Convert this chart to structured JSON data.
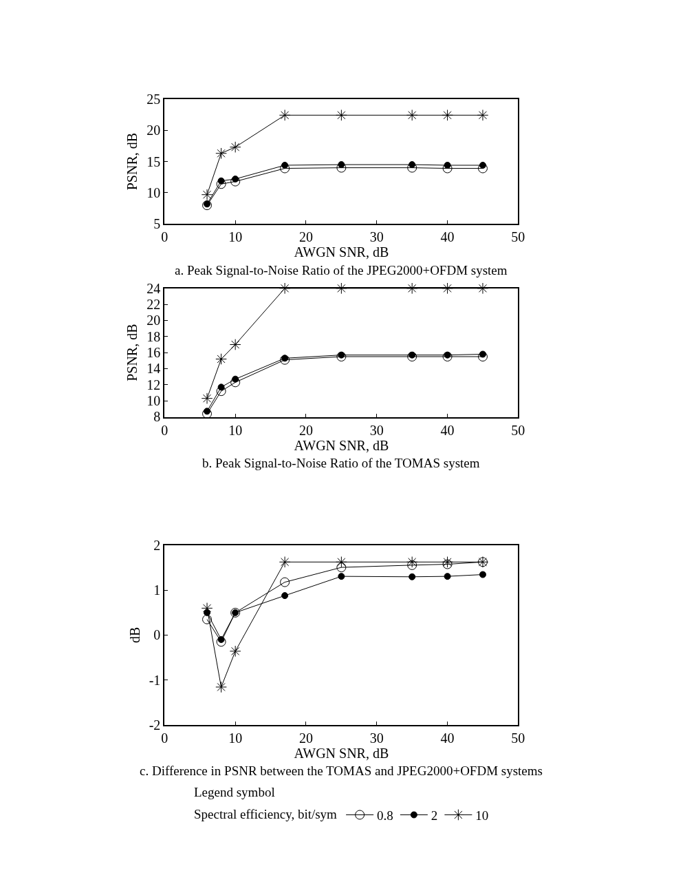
{
  "chart_data": [
    {
      "type": "line",
      "title": "a. Peak Signal-to-Noise Ratio of the JPEG2000+OFDM system",
      "xlabel": "AWGN SNR, dB",
      "ylabel": "PSNR, dB",
      "x": [
        6,
        8,
        10,
        17,
        25,
        35,
        40,
        45
      ],
      "xlim": [
        0,
        50
      ],
      "xticks": [
        0,
        10,
        20,
        30,
        40,
        50
      ],
      "ylim": [
        5,
        25
      ],
      "yticks": [
        5,
        10,
        15,
        20,
        25
      ],
      "series": [
        {
          "color": "#000000",
          "marker": "circle-open",
          "values": [
            8.0,
            11.4,
            11.8,
            13.9,
            14.0,
            14.0,
            13.9,
            13.9
          ]
        },
        {
          "color": "#000000",
          "marker": "circle",
          "values": [
            8.2,
            11.9,
            12.2,
            14.4,
            14.5,
            14.5,
            14.4,
            14.4
          ]
        },
        {
          "color": "#000000",
          "marker": "cross",
          "values": [
            9.7,
            16.3,
            17.3,
            22.4,
            22.4,
            22.4,
            22.4,
            22.4
          ]
        }
      ]
    },
    {
      "type": "line",
      "title": "b. Peak Signal-to-Noise Ratio of the TOMAS system",
      "xlabel": "AWGN SNR, dB",
      "ylabel": "PSNR, dB",
      "x": [
        6,
        8,
        10,
        17,
        25,
        35,
        40,
        45
      ],
      "xlim": [
        0,
        50
      ],
      "xticks": [
        0,
        10,
        20,
        30,
        40,
        50
      ],
      "ylim": [
        8,
        24
      ],
      "yticks": [
        8,
        10,
        12,
        14,
        16,
        18,
        20,
        22,
        24
      ],
      "series": [
        {
          "color": "#000000",
          "marker": "circle-open",
          "values": [
            8.4,
            11.2,
            12.3,
            15.1,
            15.5,
            15.5,
            15.5,
            15.5
          ]
        },
        {
          "color": "#000000",
          "marker": "circle",
          "values": [
            8.7,
            11.7,
            12.7,
            15.3,
            15.7,
            15.7,
            15.7,
            15.8
          ]
        },
        {
          "color": "#000000",
          "marker": "cross",
          "values": [
            10.3,
            15.2,
            17.0,
            24,
            24,
            24,
            24,
            24
          ]
        }
      ]
    },
    {
      "type": "line",
      "title": "c. Difference in PSNR between the TOMAS and JPEG2000+OFDM systems",
      "xlabel": "AWGN SNR, dB",
      "ylabel": "dB",
      "x": [
        6,
        8,
        10,
        17,
        25,
        35,
        40,
        45
      ],
      "xlim": [
        0,
        50
      ],
      "xticks": [
        0,
        10,
        20,
        30,
        40,
        50
      ],
      "ylim": [
        -2,
        2
      ],
      "yticks": [
        -2,
        -1,
        0,
        1,
        2
      ],
      "legend": "bottom",
      "legend_title": "Spectral efficiency, bit/sym",
      "annotations": [
        "Legend symbol"
      ],
      "series": [
        {
          "name": "0.8",
          "color": "#000000",
          "marker": "circle-open",
          "values": [
            0.35,
            -0.15,
            0.5,
            1.18,
            1.51,
            1.56,
            1.58,
            1.63
          ]
        },
        {
          "name": "2",
          "color": "#000000",
          "marker": "circle",
          "values": [
            0.5,
            -0.1,
            0.5,
            0.88,
            1.31,
            1.3,
            1.31,
            1.35
          ]
        },
        {
          "name": "10",
          "color": "#000000",
          "marker": "cross",
          "values": [
            0.6,
            -1.16,
            -0.36,
            1.63,
            1.63,
            1.63,
            1.63,
            1.63
          ]
        }
      ]
    }
  ]
}
